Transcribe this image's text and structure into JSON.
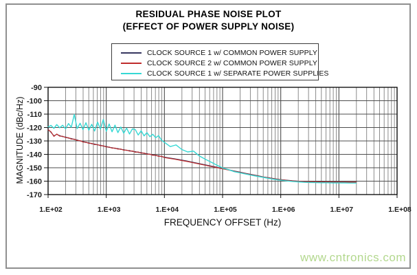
{
  "page": {
    "watermark": "www.cntronics.com",
    "watermark_color": "#b3d88e",
    "frame_color": "#8f8f8f"
  },
  "chart_data": {
    "type": "line",
    "title": "RESIDUAL PHASE NOISE PLOT",
    "subtitle": "(EFFECT OF POWER SUPPLY NOISE)",
    "xlabel": "FREQUENCY OFFSET (Hz)",
    "ylabel": "MAGNITUDE (dBc/Hz)",
    "x_scale": "log",
    "xlim_hz": [
      100,
      100000000
    ],
    "ylim": [
      -170,
      -90
    ],
    "grid": true,
    "legend_position": "top-center-boxed",
    "x_tick_labels": [
      "1.E+02",
      "1.E+03",
      "1.E+04",
      "1.E+05",
      "1.E+06",
      "1.E+07",
      "1.E+08"
    ],
    "y_ticks": [
      -90,
      -100,
      -110,
      -120,
      -130,
      -140,
      -150,
      -160,
      -170
    ],
    "series": [
      {
        "id": "clock1-common",
        "name": "CLOCK SOURCE 1 w/ COMMON POWER SUPPLY",
        "color": "#36365f",
        "points": [
          [
            100,
            -121.3
          ],
          [
            112,
            -123.6
          ],
          [
            126,
            -126.2
          ],
          [
            141,
            -125.1
          ],
          [
            158,
            -126.0
          ],
          [
            178,
            -126.8
          ],
          [
            200,
            -127.1
          ],
          [
            224,
            -127.9
          ],
          [
            251,
            -128.2
          ],
          [
            282,
            -128.9
          ],
          [
            316,
            -129.3
          ],
          [
            355,
            -130.1
          ],
          [
            398,
            -130.4
          ],
          [
            447,
            -131.2
          ],
          [
            501,
            -131.4
          ],
          [
            562,
            -132.1
          ],
          [
            631,
            -132.3
          ],
          [
            708,
            -133.0
          ],
          [
            794,
            -133.2
          ],
          [
            891,
            -133.9
          ],
          [
            1000,
            -134.1
          ],
          [
            1122,
            -134.8
          ],
          [
            1259,
            -135.0
          ],
          [
            1413,
            -135.6
          ],
          [
            1585,
            -135.7
          ],
          [
            1778,
            -136.3
          ],
          [
            1995,
            -136.5
          ],
          [
            2239,
            -137.1
          ],
          [
            2512,
            -137.2
          ],
          [
            2818,
            -137.8
          ],
          [
            3162,
            -138.0
          ],
          [
            3548,
            -138.5
          ],
          [
            3981,
            -138.7
          ],
          [
            4467,
            -139.3
          ],
          [
            5012,
            -139.5
          ],
          [
            5623,
            -140.1
          ],
          [
            6310,
            -140.3
          ],
          [
            7079,
            -140.9
          ],
          [
            7943,
            -141.1
          ],
          [
            8913,
            -141.7
          ],
          [
            10000,
            -142.1
          ],
          [
            12589,
            -142.8
          ],
          [
            15849,
            -143.5
          ],
          [
            19953,
            -144.3
          ],
          [
            25119,
            -145.1
          ],
          [
            31623,
            -146.0
          ],
          [
            39811,
            -146.9
          ],
          [
            50119,
            -147.8
          ],
          [
            63096,
            -148.7
          ],
          [
            79433,
            -149.6
          ],
          [
            100000,
            -150.6
          ],
          [
            125893,
            -151.5
          ],
          [
            158489,
            -152.4
          ],
          [
            199526,
            -153.3
          ],
          [
            251189,
            -154.2
          ],
          [
            316228,
            -155.1
          ],
          [
            398107,
            -155.9
          ],
          [
            501187,
            -156.8
          ],
          [
            630957,
            -157.5
          ],
          [
            794328,
            -158.2
          ],
          [
            1000000,
            -158.8
          ],
          [
            1258925,
            -159.3
          ],
          [
            1584893,
            -159.7
          ],
          [
            1995262,
            -160.0
          ],
          [
            2511886,
            -160.2
          ],
          [
            3162278,
            -160.4
          ],
          [
            3981072,
            -160.5
          ],
          [
            5011872,
            -160.5
          ],
          [
            6309573,
            -160.6
          ],
          [
            7943282,
            -160.6
          ],
          [
            10000000,
            -160.6
          ],
          [
            12589254,
            -160.6
          ],
          [
            15848932,
            -160.7
          ],
          [
            19952623,
            -160.7
          ]
        ]
      },
      {
        "id": "clock2-common",
        "name": "CLOCK SOURCE 2 w/ COMMON POWER SUPPLY",
        "color": "#bf2b2b",
        "points": [
          [
            100,
            -121.7
          ],
          [
            112,
            -123.2
          ],
          [
            126,
            -126.6
          ],
          [
            141,
            -124.8
          ],
          [
            158,
            -126.4
          ],
          [
            178,
            -126.5
          ],
          [
            200,
            -127.5
          ],
          [
            224,
            -127.6
          ],
          [
            251,
            -128.6
          ],
          [
            282,
            -128.6
          ],
          [
            316,
            -129.7
          ],
          [
            355,
            -129.8
          ],
          [
            398,
            -130.8
          ],
          [
            447,
            -130.9
          ],
          [
            501,
            -131.8
          ],
          [
            562,
            -131.8
          ],
          [
            631,
            -132.7
          ],
          [
            708,
            -132.7
          ],
          [
            794,
            -133.6
          ],
          [
            891,
            -133.6
          ],
          [
            1000,
            -134.5
          ],
          [
            1122,
            -134.5
          ],
          [
            1259,
            -135.4
          ],
          [
            1413,
            -135.3
          ],
          [
            1585,
            -136.1
          ],
          [
            1778,
            -136.0
          ],
          [
            1995,
            -136.9
          ],
          [
            2239,
            -136.8
          ],
          [
            2512,
            -137.6
          ],
          [
            2818,
            -137.5
          ],
          [
            3162,
            -138.4
          ],
          [
            3548,
            -138.2
          ],
          [
            3981,
            -139.1
          ],
          [
            4467,
            -139.0
          ],
          [
            5012,
            -139.9
          ],
          [
            5623,
            -139.8
          ],
          [
            6310,
            -140.7
          ],
          [
            7079,
            -140.6
          ],
          [
            7943,
            -141.5
          ],
          [
            8913,
            -141.4
          ],
          [
            10000,
            -142.4
          ],
          [
            12589,
            -143.1
          ],
          [
            15849,
            -143.8
          ],
          [
            19953,
            -144.6
          ],
          [
            25119,
            -145.4
          ],
          [
            31623,
            -146.3
          ],
          [
            39811,
            -147.2
          ],
          [
            50119,
            -148.1
          ],
          [
            63096,
            -149.0
          ],
          [
            79433,
            -149.9
          ],
          [
            100000,
            -150.8
          ],
          [
            125893,
            -151.7
          ],
          [
            158489,
            -152.6
          ],
          [
            199526,
            -153.5
          ],
          [
            251189,
            -154.4
          ],
          [
            316228,
            -155.3
          ],
          [
            398107,
            -156.1
          ],
          [
            501187,
            -156.9
          ],
          [
            630957,
            -157.6
          ],
          [
            794328,
            -158.3
          ],
          [
            1000000,
            -158.9
          ],
          [
            1258925,
            -159.4
          ],
          [
            1584893,
            -159.8
          ],
          [
            1995262,
            -160.1
          ],
          [
            2511886,
            -160.3
          ],
          [
            3162278,
            -160.4
          ],
          [
            3981072,
            -160.5
          ],
          [
            5011872,
            -160.6
          ],
          [
            6309573,
            -160.6
          ],
          [
            7943282,
            -160.7
          ],
          [
            10000000,
            -160.7
          ],
          [
            12589254,
            -160.7
          ],
          [
            15848932,
            -160.7
          ],
          [
            19952623,
            -160.7
          ]
        ]
      },
      {
        "id": "clock1-separate",
        "name": "CLOCK SOURCE 1 w/ SEPARATE POWER SUPPLIES",
        "color": "#35d8d4",
        "points": [
          [
            100,
            -119.6
          ],
          [
            112,
            -118.4
          ],
          [
            126,
            -120.6
          ],
          [
            141,
            -117.8
          ],
          [
            158,
            -120.2
          ],
          [
            178,
            -118.3
          ],
          [
            200,
            -121.0
          ],
          [
            224,
            -117.0
          ],
          [
            251,
            -119.8
          ],
          [
            282,
            -110.2
          ],
          [
            316,
            -120.8
          ],
          [
            355,
            -116.8
          ],
          [
            398,
            -121.6
          ],
          [
            447,
            -116.4
          ],
          [
            501,
            -122.0
          ],
          [
            562,
            -117.6
          ],
          [
            631,
            -122.6
          ],
          [
            708,
            -116.0
          ],
          [
            794,
            -121.2
          ],
          [
            891,
            -114.0
          ],
          [
            1000,
            -122.8
          ],
          [
            1122,
            -117.4
          ],
          [
            1259,
            -123.2
          ],
          [
            1413,
            -118.2
          ],
          [
            1585,
            -123.8
          ],
          [
            1778,
            -119.6
          ],
          [
            1995,
            -124.2
          ],
          [
            2239,
            -120.4
          ],
          [
            2512,
            -124.8
          ],
          [
            2818,
            -121.0
          ],
          [
            3162,
            -121.6
          ],
          [
            3548,
            -125.6
          ],
          [
            3981,
            -122.4
          ],
          [
            4467,
            -126.2
          ],
          [
            5012,
            -123.8
          ],
          [
            5623,
            -126.8
          ],
          [
            6310,
            -125.0
          ],
          [
            7079,
            -127.6
          ],
          [
            7943,
            -126.0
          ],
          [
            8913,
            -129.4
          ],
          [
            10000,
            -131.0
          ],
          [
            12589,
            -134.2
          ],
          [
            15849,
            -133.0
          ],
          [
            19953,
            -136.4
          ],
          [
            25119,
            -138.2
          ],
          [
            31623,
            -137.6
          ],
          [
            39811,
            -141.2
          ],
          [
            50119,
            -143.6
          ],
          [
            63096,
            -145.8
          ],
          [
            79433,
            -148.0
          ],
          [
            100000,
            -150.2
          ],
          [
            125893,
            -151.4
          ],
          [
            158489,
            -152.9
          ],
          [
            199526,
            -153.8
          ],
          [
            251189,
            -154.7
          ],
          [
            316228,
            -155.6
          ],
          [
            398107,
            -156.4
          ],
          [
            501187,
            -157.2
          ],
          [
            630957,
            -158.0
          ],
          [
            794328,
            -158.7
          ],
          [
            1000000,
            -159.3
          ],
          [
            1258925,
            -159.8
          ],
          [
            1584893,
            -160.2
          ],
          [
            1995262,
            -160.5
          ],
          [
            2511886,
            -160.8
          ],
          [
            3162278,
            -161.0
          ],
          [
            3981072,
            -161.1
          ],
          [
            5011872,
            -161.2
          ],
          [
            6309573,
            -161.2
          ],
          [
            7943282,
            -161.3
          ],
          [
            10000000,
            -161.3
          ],
          [
            12589254,
            -161.3
          ],
          [
            15848932,
            -161.4
          ],
          [
            19952623,
            -161.4
          ]
        ]
      }
    ]
  }
}
